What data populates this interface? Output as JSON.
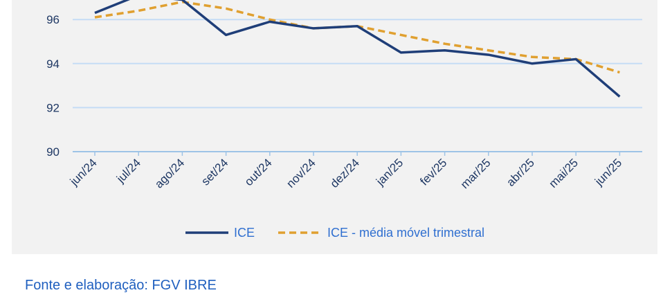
{
  "chart_data": {
    "type": "line",
    "title": "",
    "categories": [
      "jun/24",
      "jul/24",
      "ago/24",
      "set/24",
      "out/24",
      "nov/24",
      "dez/24",
      "jan/25",
      "fev/25",
      "mar/25",
      "abr/25",
      "mai/25",
      "jun/25"
    ],
    "series": [
      {
        "name": "ICE",
        "color": "#1f3e78",
        "style": "solid",
        "values": [
          96.3,
          97.1,
          96.9,
          95.3,
          95.9,
          95.6,
          95.7,
          94.5,
          94.6,
          94.4,
          94.0,
          94.2,
          92.5
        ]
      },
      {
        "name": "ICE - média móvel trimestral",
        "color": "#e0a030",
        "style": "dashed",
        "values": [
          96.1,
          96.4,
          96.8,
          96.5,
          96.0,
          95.6,
          95.7,
          95.3,
          94.9,
          94.6,
          94.3,
          94.2,
          93.6
        ]
      }
    ],
    "yticks": [
      90,
      92,
      94,
      96
    ],
    "ylim": [
      90,
      96.9
    ],
    "grid": true,
    "legend": "bottom"
  },
  "source": "Fonte e elaboração: FGV IBRE"
}
